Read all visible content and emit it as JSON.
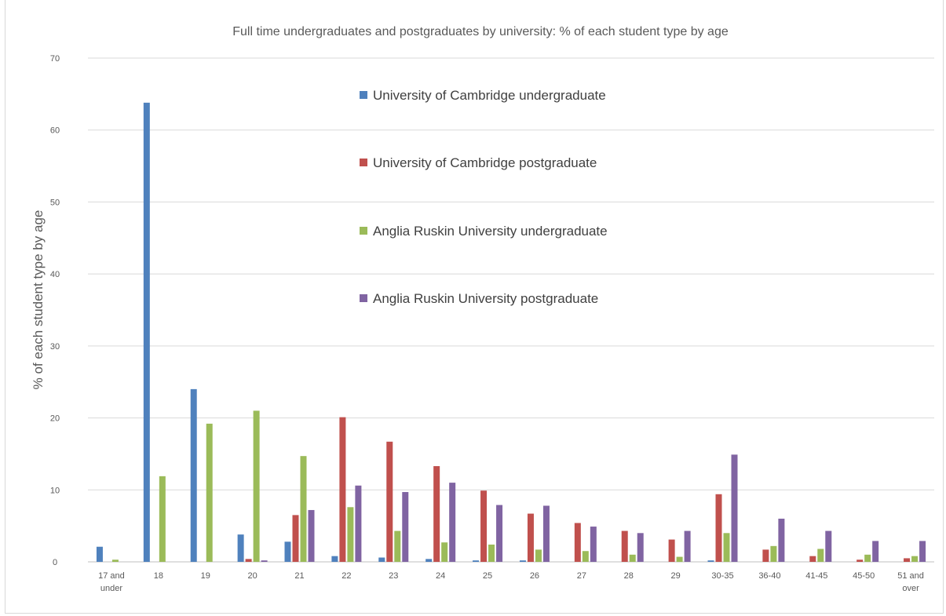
{
  "chart_data": {
    "type": "bar",
    "title": "Full time undergraduates and postgraduates by university:  % of each student type by age",
    "xlabel": "",
    "ylabel": "% of each student type by age",
    "ylim": [
      0,
      70
    ],
    "yticks": [
      0,
      10,
      20,
      30,
      40,
      50,
      60,
      70
    ],
    "grid": true,
    "legend_position": "inside-top-center",
    "categories": [
      [
        "17 and",
        "under"
      ],
      [
        "18"
      ],
      [
        "19"
      ],
      [
        "20"
      ],
      [
        "21"
      ],
      [
        "22"
      ],
      [
        "23"
      ],
      [
        "24"
      ],
      [
        "25"
      ],
      [
        "26"
      ],
      [
        "27"
      ],
      [
        "28"
      ],
      [
        "29"
      ],
      [
        "30-35"
      ],
      [
        "36-40"
      ],
      [
        "41-45"
      ],
      [
        "45-50"
      ],
      [
        "51 and",
        "over"
      ]
    ],
    "series": [
      {
        "name": "University of Cambridge undergraduate",
        "color": "#4f81bd",
        "values": [
          2.1,
          63.8,
          24.0,
          3.8,
          2.8,
          0.8,
          0.6,
          0.4,
          0.2,
          0.2,
          0,
          0,
          0,
          0.2,
          0,
          0,
          0,
          0
        ]
      },
      {
        "name": "University of Cambridge postgraduate",
        "color": "#c0504d",
        "values": [
          0,
          0,
          0,
          0.4,
          6.5,
          20.1,
          16.7,
          13.3,
          9.9,
          6.7,
          5.4,
          4.3,
          3.1,
          9.4,
          1.7,
          0.8,
          0.3,
          0.5
        ]
      },
      {
        "name": "Anglia Ruskin University undergraduate",
        "color": "#9bbb59",
        "values": [
          0.3,
          11.9,
          19.2,
          21.0,
          14.7,
          7.6,
          4.3,
          2.7,
          2.4,
          1.7,
          1.5,
          1.0,
          0.7,
          4.0,
          2.2,
          1.8,
          1.0,
          0.8
        ]
      },
      {
        "name": "Anglia Ruskin University postgraduate",
        "color": "#8064a2",
        "values": [
          0,
          0,
          0,
          0.2,
          7.2,
          10.6,
          9.7,
          11.0,
          7.9,
          7.8,
          4.9,
          4.0,
          4.3,
          14.9,
          6.0,
          4.3,
          2.9,
          2.9
        ]
      }
    ]
  }
}
